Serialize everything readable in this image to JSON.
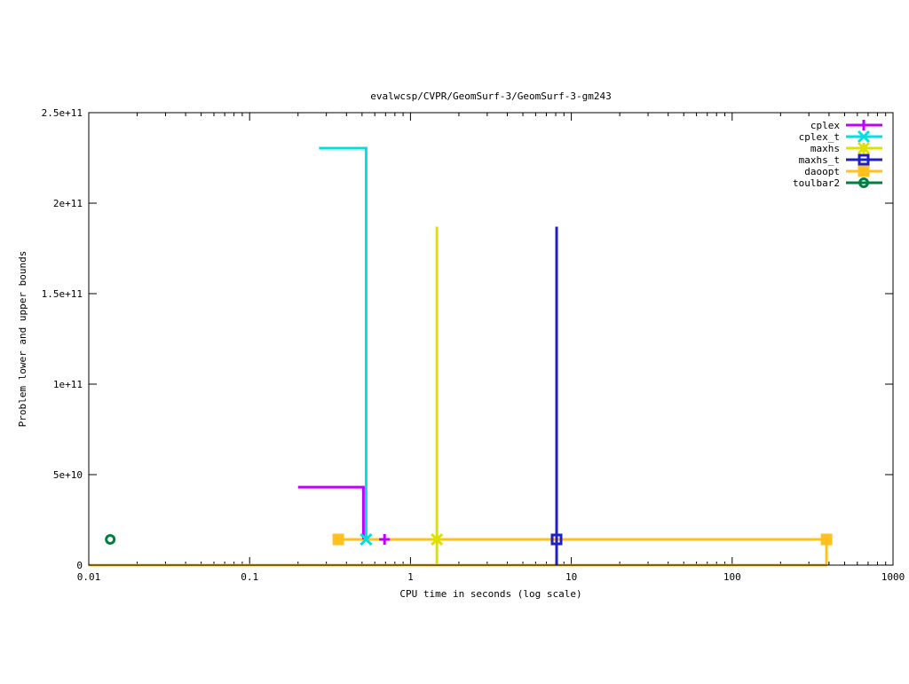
{
  "chart_data": {
    "type": "line",
    "title": "evalwcsp/CVPR/GeomSurf-3/GeomSurf-3-gm243",
    "xlabel": "CPU time in seconds (log scale)",
    "ylabel": "Problem lower and upper bounds",
    "xscale": "log",
    "xlim": [
      0.01,
      1000
    ],
    "ylim": [
      0,
      250000000000
    ],
    "x_ticks": [
      {
        "value": 0.01,
        "label": "0.01"
      },
      {
        "value": 0.1,
        "label": "0.1"
      },
      {
        "value": 1,
        "label": "1"
      },
      {
        "value": 10,
        "label": "10"
      },
      {
        "value": 100,
        "label": "100"
      },
      {
        "value": 1000,
        "label": "1000"
      }
    ],
    "y_ticks": [
      {
        "value": 0,
        "label": "0"
      },
      {
        "value": 50000000000,
        "label": "5e+10"
      },
      {
        "value": 100000000000,
        "label": "1e+11"
      },
      {
        "value": 150000000000,
        "label": "1.5e+11"
      },
      {
        "value": 200000000000,
        "label": "2e+11"
      },
      {
        "value": 250000000000,
        "label": "2.5e+11"
      }
    ],
    "grid": false,
    "legend_position": "top-right",
    "series": [
      {
        "name": "cplex",
        "color": "#c000ff",
        "marker": "plus",
        "lines": [
          [
            [
              0.2,
              43100000000
            ],
            [
              0.51,
              43100000000
            ],
            [
              0.51,
              14200000000
            ]
          ]
        ],
        "markers": [
          [
            0.69,
            14200000000
          ]
        ]
      },
      {
        "name": "cplex_t",
        "color": "#00e0e0",
        "marker": "cross",
        "lines": [
          [
            [
              0.27,
              230400000000
            ],
            [
              0.53,
              230400000000
            ],
            [
              0.53,
              14200000000
            ]
          ]
        ],
        "markers": [
          [
            0.53,
            14200000000
          ]
        ]
      },
      {
        "name": "maxhs",
        "color": "#e0e000",
        "marker": "star",
        "lines": [
          [
            [
              1.46,
              187000000000
            ],
            [
              1.46,
              0
            ]
          ]
        ],
        "markers": [
          [
            1.46,
            14200000000
          ]
        ]
      },
      {
        "name": "maxhs_t",
        "color": "#2020c0",
        "marker": "box",
        "lines": [
          [
            [
              8.1,
              187000000000
            ],
            [
              8.1,
              0
            ]
          ]
        ],
        "markers": [
          [
            8.1,
            14200000000
          ]
        ]
      },
      {
        "name": "daoopt",
        "color": "#ffc020",
        "marker": "filled-box",
        "lines": [
          [
            [
              0.356,
              14200000000
            ],
            [
              386,
              14200000000
            ],
            [
              386,
              0
            ]
          ],
          [
            [
              0.01,
              0
            ],
            [
              386,
              0
            ]
          ]
        ],
        "markers": [
          [
            0.356,
            14200000000
          ],
          [
            386,
            14200000000
          ]
        ]
      },
      {
        "name": "toulbar2",
        "color": "#008040",
        "marker": "circle",
        "lines": [],
        "markers": [
          [
            0.0136,
            14200000000
          ]
        ]
      }
    ]
  }
}
